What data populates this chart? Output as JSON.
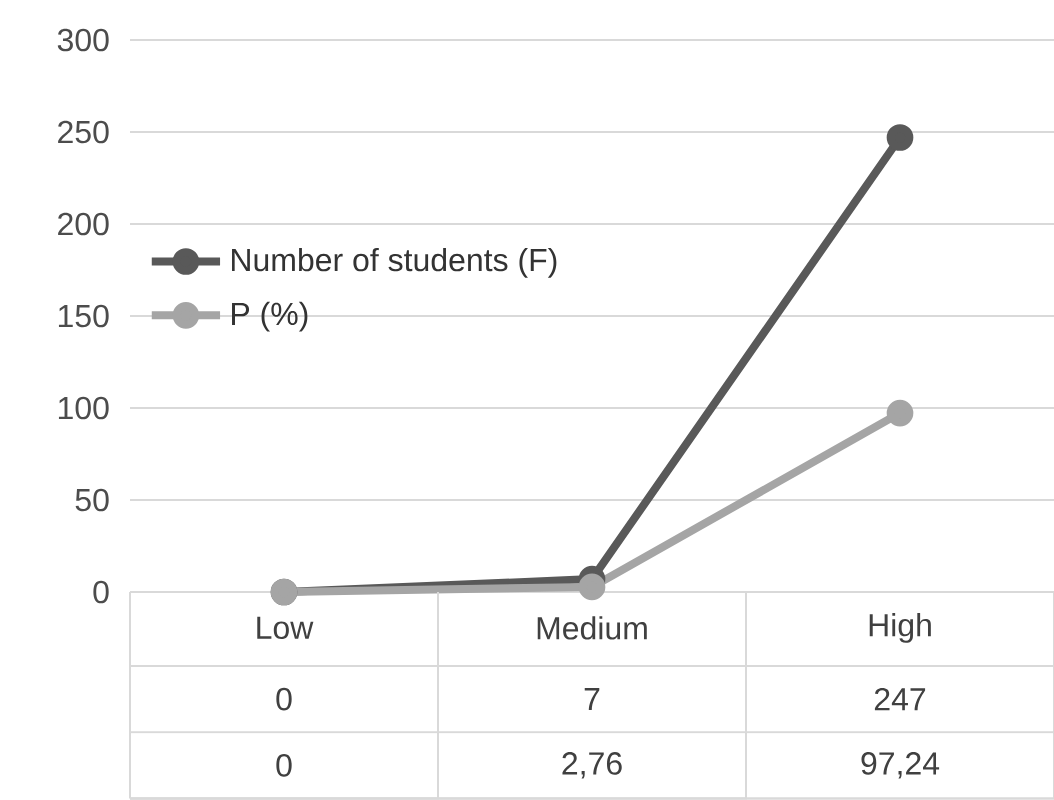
{
  "chart_data": {
    "type": "line",
    "categories": [
      "Low",
      "Medium",
      "High"
    ],
    "series": [
      {
        "name": "Number of students (F)",
        "color": "#595959",
        "values": [
          0,
          7,
          247
        ],
        "value_labels": [
          "0",
          "7",
          "247"
        ]
      },
      {
        "name": "P (%)",
        "color": "#a5a5a5",
        "values": [
          0,
          2.76,
          97.24
        ],
        "value_labels": [
          "0",
          "2,76",
          "97,24"
        ]
      }
    ],
    "ylim": [
      0,
      300
    ],
    "yticks": [
      0,
      50,
      100,
      150,
      200,
      250,
      300
    ],
    "grid": "y",
    "legend": "left",
    "marker": "circle",
    "line_style": "solid"
  }
}
